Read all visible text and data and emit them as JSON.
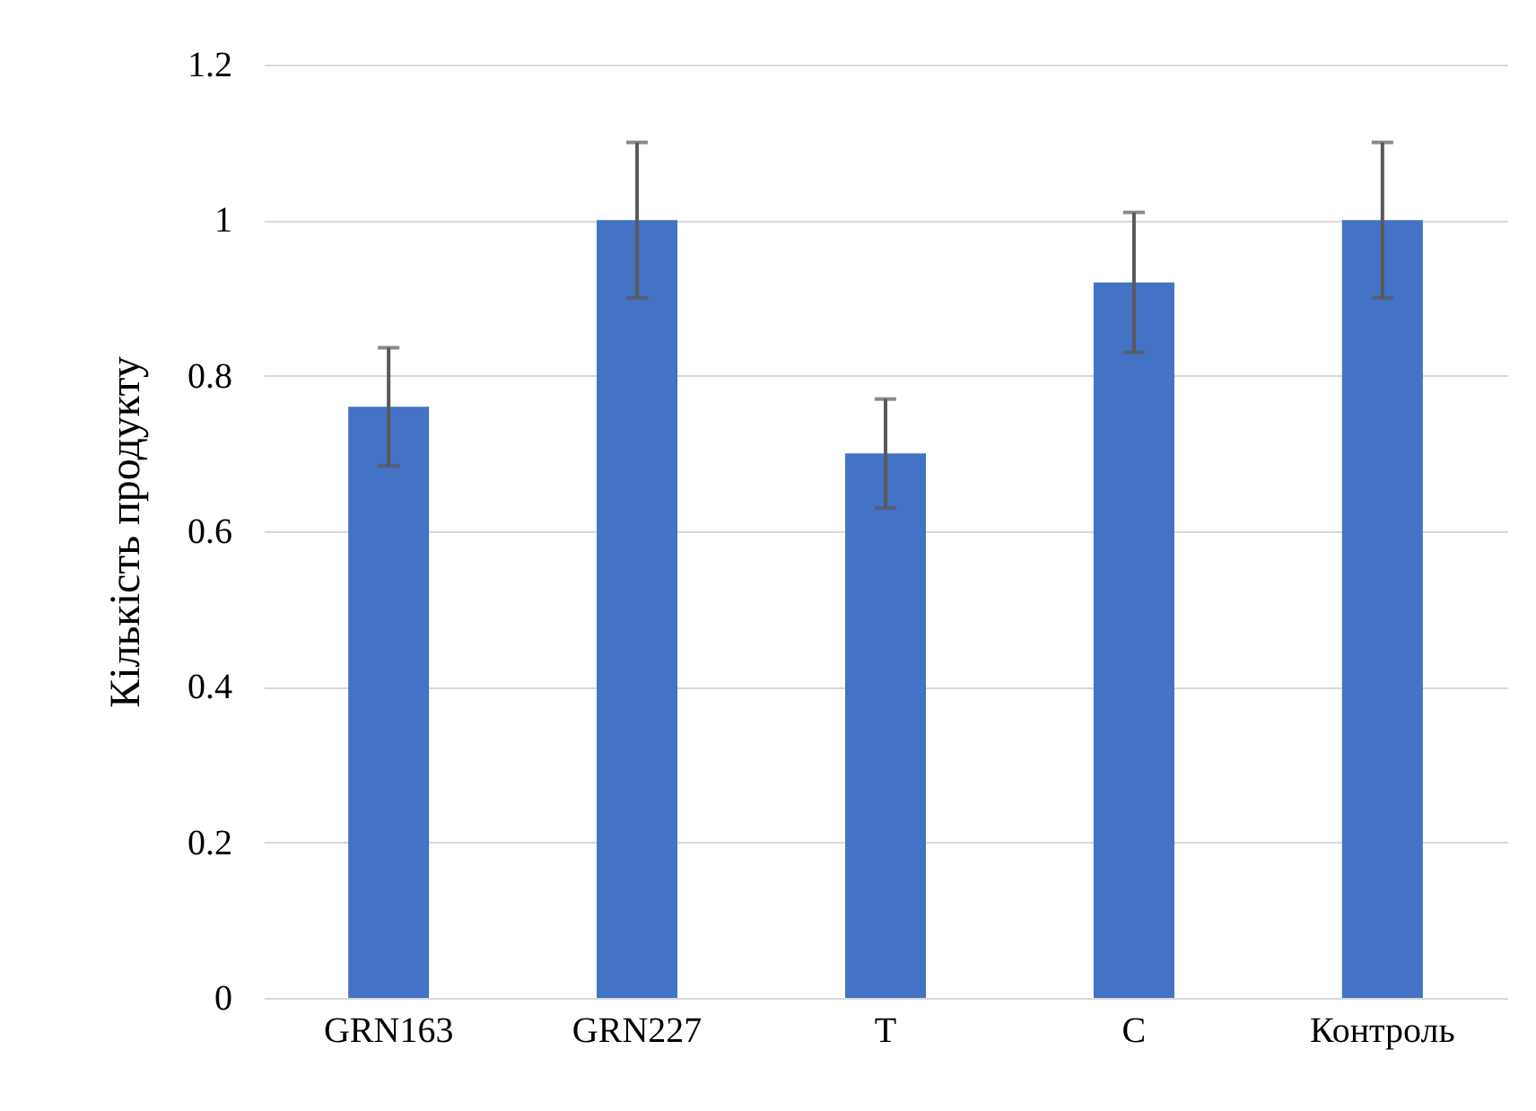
{
  "chart_data": {
    "type": "bar",
    "ylabel": "Кількість продукту",
    "categories": [
      "GRN163",
      "GRN227",
      "T",
      "C",
      "Контроль"
    ],
    "values": [
      0.76,
      1.0,
      0.7,
      0.92,
      1.0
    ],
    "errors": [
      0.076,
      0.1,
      0.07,
      0.09,
      0.1
    ],
    "color": "#4472c4",
    "ylim": [
      0,
      1.2
    ],
    "yticks": [
      0,
      0.2,
      0.4,
      0.6,
      0.8,
      1,
      1.2
    ],
    "grid": "y"
  }
}
